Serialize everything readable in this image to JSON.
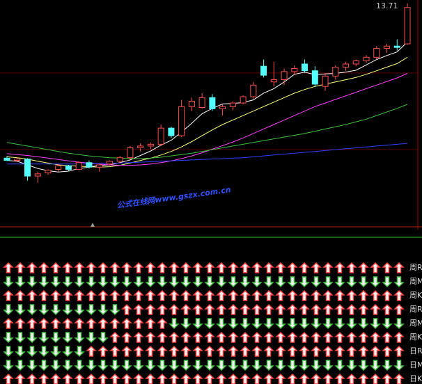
{
  "chart_data": {
    "type": "candlestick",
    "up_color": "#ff5050",
    "down_color": "#54ffff",
    "open": [
      10.35,
      10.3,
      10.33,
      9.95,
      10.02,
      10.1,
      10.18,
      10.1,
      10.25,
      10.15,
      10.22,
      10.28,
      10.36,
      10.58,
      10.62,
      10.66,
      11.02,
      10.85,
      11.5,
      11.48,
      11.7,
      11.45,
      11.5,
      11.58,
      11.72,
      12.4,
      12.05,
      12.1,
      12.28,
      12.45,
      12.3,
      11.95,
      12.18,
      12.38,
      12.45,
      12.52,
      12.6,
      12.8,
      12.85,
      12.9
    ],
    "high": [
      10.4,
      10.36,
      10.35,
      10.05,
      10.1,
      10.22,
      10.2,
      10.28,
      10.3,
      10.22,
      10.3,
      10.4,
      10.62,
      10.68,
      10.7,
      11.1,
      11.05,
      11.65,
      11.7,
      11.8,
      11.78,
      11.55,
      11.62,
      11.75,
      12.05,
      12.55,
      12.5,
      12.35,
      12.42,
      12.55,
      12.4,
      12.25,
      12.42,
      12.5,
      12.55,
      12.65,
      12.85,
      12.9,
      13.0,
      13.8
    ],
    "low": [
      10.28,
      10.26,
      9.85,
      9.8,
      9.98,
      10.05,
      10.06,
      10.08,
      10.12,
      10.05,
      10.18,
      10.24,
      10.32,
      10.5,
      10.55,
      10.62,
      10.8,
      10.82,
      11.4,
      11.45,
      11.4,
      11.3,
      11.42,
      11.55,
      11.68,
      12.15,
      11.95,
      11.98,
      12.2,
      12.25,
      11.95,
      11.85,
      12.1,
      12.3,
      12.4,
      12.48,
      12.55,
      12.7,
      12.75,
      12.88
    ],
    "close": [
      10.3,
      10.33,
      9.95,
      10.0,
      10.08,
      10.18,
      10.1,
      10.25,
      10.15,
      10.2,
      10.28,
      10.36,
      10.58,
      10.62,
      10.66,
      11.02,
      10.85,
      11.5,
      11.62,
      11.7,
      11.45,
      11.5,
      11.58,
      11.72,
      11.98,
      12.2,
      12.1,
      12.28,
      12.35,
      12.3,
      12.0,
      12.18,
      12.38,
      12.45,
      12.52,
      12.6,
      12.8,
      12.85,
      12.82,
      13.71
    ],
    "series": [
      {
        "color": "#ffffff",
        "values": [
          10.3,
          10.28,
          10.2,
          10.12,
          10.07,
          10.04,
          10.06,
          10.12,
          10.15,
          10.19,
          10.2,
          10.25,
          10.31,
          10.41,
          10.51,
          10.64,
          10.75,
          10.93,
          11.13,
          11.34,
          11.46,
          11.56,
          11.57,
          11.59,
          11.65,
          11.8,
          11.9,
          12.05,
          12.22,
          12.27,
          12.21,
          12.23,
          12.24,
          12.27,
          12.31,
          12.43,
          12.55,
          12.64,
          12.72,
          12.94
        ]
      },
      {
        "color": "#ffff80",
        "values": [
          10.38,
          10.36,
          10.33,
          10.28,
          10.24,
          10.2,
          10.18,
          10.17,
          10.16,
          10.15,
          10.16,
          10.19,
          10.24,
          10.3,
          10.35,
          10.42,
          10.5,
          10.6,
          10.72,
          10.85,
          10.98,
          11.1,
          11.2,
          11.3,
          11.4,
          11.5,
          11.6,
          11.7,
          11.8,
          11.88,
          11.95,
          12.0,
          12.05,
          12.1,
          12.15,
          12.22,
          12.3,
          12.38,
          12.46,
          12.6
        ]
      },
      {
        "color": "#ff40ff",
        "values": [
          10.45,
          10.43,
          10.41,
          10.38,
          10.35,
          10.32,
          10.29,
          10.26,
          10.24,
          10.22,
          10.2,
          10.19,
          10.19,
          10.2,
          10.22,
          10.25,
          10.29,
          10.34,
          10.4,
          10.47,
          10.55,
          10.63,
          10.71,
          10.8,
          10.9,
          11.0,
          11.1,
          11.2,
          11.3,
          11.4,
          11.5,
          11.58,
          11.66,
          11.74,
          11.82,
          11.9,
          11.98,
          12.06,
          12.14,
          12.24
        ]
      },
      {
        "color": "#40c040",
        "values": [
          10.7,
          10.66,
          10.62,
          10.58,
          10.54,
          10.5,
          10.46,
          10.43,
          10.4,
          10.38,
          10.36,
          10.35,
          10.34,
          10.34,
          10.35,
          10.37,
          10.4,
          10.43,
          10.46,
          10.5,
          10.54,
          10.58,
          10.62,
          10.66,
          10.7,
          10.74,
          10.78,
          10.82,
          10.86,
          10.9,
          10.95,
          11.0,
          11.05,
          11.1,
          11.16,
          11.22,
          11.3,
          11.38,
          11.46,
          11.55
        ]
      },
      {
        "color": "#3040ff",
        "values": [
          10.22,
          10.22,
          10.22,
          10.22,
          10.22,
          10.22,
          10.22,
          10.22,
          10.22,
          10.23,
          10.23,
          10.24,
          10.25,
          10.26,
          10.27,
          10.28,
          10.29,
          10.3,
          10.31,
          10.32,
          10.33,
          10.34,
          10.35,
          10.36,
          10.38,
          10.4,
          10.42,
          10.44,
          10.46,
          10.48,
          10.5,
          10.52,
          10.54,
          10.56,
          10.58,
          10.6,
          10.62,
          10.64,
          10.66,
          10.68
        ]
      }
    ],
    "ylim": [
      9.3,
      13.8
    ],
    "watermark": "公式在线网www.gszx.com.cn"
  },
  "arrow_panel": {
    "up_color": "#ff4040",
    "down_color": "#40c040",
    "rows": [
      {
        "label": "周R",
        "values": [
          1,
          1,
          1,
          1,
          1,
          1,
          1,
          1,
          1,
          1,
          1,
          1,
          1,
          1,
          1,
          1,
          1,
          1,
          1,
          1,
          1,
          1,
          1,
          1,
          1,
          1,
          1,
          1,
          1,
          1,
          1,
          1,
          1,
          1
        ]
      },
      {
        "label": "周M",
        "values": [
          -1,
          -1,
          -1,
          -1,
          -1,
          -1,
          -1,
          -1,
          -1,
          -1,
          -1,
          -1,
          -1,
          -1,
          -1,
          -1,
          -1,
          -1,
          -1,
          -1,
          -1,
          -1,
          -1,
          -1,
          -1,
          -1,
          -1,
          -1,
          -1,
          -1,
          -1,
          -1,
          -1,
          -1
        ]
      },
      {
        "label": "周K",
        "values": [
          1,
          1,
          1,
          1,
          1,
          1,
          1,
          1,
          1,
          1,
          1,
          1,
          1,
          1,
          1,
          1,
          1,
          1,
          1,
          1,
          1,
          1,
          1,
          1,
          1,
          1,
          1,
          1,
          1,
          1,
          1,
          1,
          1,
          1
        ]
      },
      {
        "label": "周R",
        "values": [
          -1,
          -1,
          -1,
          -1,
          -1,
          -1,
          -1,
          -1,
          -1,
          -1,
          1,
          1,
          1,
          1,
          1,
          1,
          1,
          1,
          1,
          1,
          1,
          1,
          1,
          1,
          1,
          1,
          1,
          1,
          1,
          1,
          1,
          1,
          1,
          1
        ]
      },
      {
        "label": "周M",
        "values": [
          1,
          1,
          1,
          1,
          1,
          1,
          1,
          1,
          1,
          1,
          1,
          1,
          1,
          1,
          -1,
          -1,
          -1,
          -1,
          -1,
          -1,
          -1,
          -1,
          -1,
          -1,
          -1,
          -1,
          -1,
          -1,
          -1,
          -1,
          -1,
          -1,
          -1,
          -1
        ]
      },
      {
        "label": "周K",
        "values": [
          -1,
          -1,
          -1,
          -1,
          -1,
          -1,
          -1,
          -1,
          -1,
          1,
          1,
          1,
          1,
          1,
          1,
          1,
          1,
          1,
          1,
          1,
          1,
          1,
          1,
          1,
          1,
          1,
          1,
          1,
          1,
          1,
          1,
          1,
          1,
          1
        ]
      },
      {
        "label": "日R",
        "values": [
          -1,
          -1,
          -1,
          -1,
          -1,
          -1,
          -1,
          1,
          1,
          1,
          1,
          1,
          1,
          1,
          1,
          1,
          1,
          1,
          1,
          1,
          1,
          1,
          1,
          1,
          1,
          1,
          1,
          1,
          1,
          1,
          1,
          1,
          1,
          1
        ]
      },
      {
        "label": "日M",
        "values": [
          -1,
          -1,
          -1,
          -1,
          -1,
          -1,
          -1,
          -1,
          -1,
          -1,
          -1,
          -1,
          -1,
          -1,
          -1,
          -1,
          -1,
          -1,
          -1,
          -1,
          -1,
          -1,
          -1,
          -1,
          -1,
          -1,
          -1,
          -1,
          -1,
          -1,
          -1,
          -1,
          -1,
          -1
        ]
      },
      {
        "label": "日K",
        "values": [
          1,
          1,
          1,
          1,
          1,
          1,
          1,
          1,
          1,
          1,
          1,
          1,
          1,
          1,
          1,
          1,
          1,
          1,
          1,
          1,
          1,
          1,
          1,
          1,
          1,
          1,
          1,
          1,
          1,
          1,
          1,
          1,
          1,
          1
        ]
      }
    ]
  }
}
